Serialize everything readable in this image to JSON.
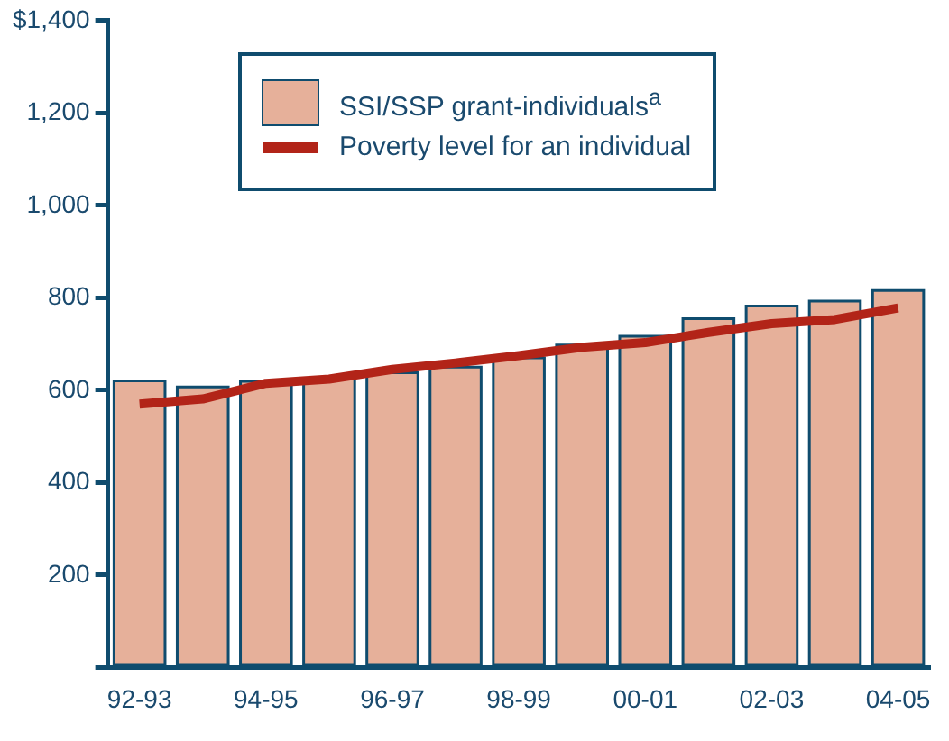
{
  "chart_data": {
    "type": "bar",
    "categories": [
      "92-93",
      null,
      "94-95",
      null,
      "96-97",
      null,
      "98-99",
      null,
      "00-01",
      null,
      "02-03",
      null,
      "04-05"
    ],
    "series": [
      {
        "name": "SSI/SSP grant-individuals$^{a}$",
        "color": "#e6b09a",
        "values": [
          620,
          607,
          619,
          625,
          638,
          650,
          670,
          698,
          717,
          755,
          782,
          793,
          816
        ]
      },
      {
        "name": "Poverty level for an individual",
        "type": "line",
        "color": "#b22418",
        "values": [
          570,
          581,
          615,
          624,
          645,
          659,
          675,
          693,
          703,
          725,
          744,
          753,
          778
        ]
      }
    ],
    "ylim": [
      0,
      1400
    ],
    "yticks": [
      {
        "value": 0,
        "label": null
      },
      200,
      400,
      600,
      800,
      {
        "value": 1000,
        "label": "1,000"
      },
      {
        "value": 1200,
        "label": "1,200"
      },
      {
        "value": 1400,
        "label": "$1,400"
      }
    ],
    "grid": false,
    "legend": "top",
    "marker": "none",
    "line_style": "solid"
  }
}
